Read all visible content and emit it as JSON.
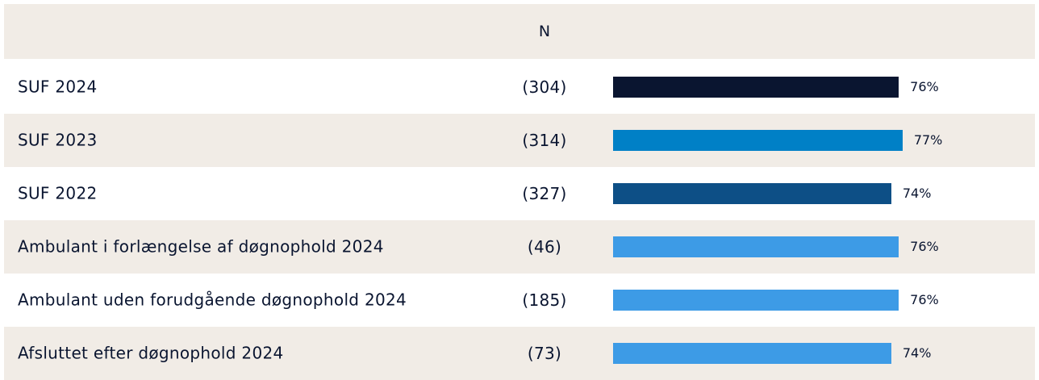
{
  "chart_data": {
    "type": "bar",
    "orientation": "horizontal",
    "n_header": "N",
    "categories": [
      "SUF 2024",
      "SUF 2023",
      "SUF 2022",
      "Ambulant i forlængelse af døgnophold 2024",
      "Ambulant uden forudgående døgnophold 2024",
      "Afsluttet efter døgnophold 2024"
    ],
    "n": [
      304,
      314,
      327,
      46,
      185,
      73
    ],
    "n_labels": [
      "(304)",
      "(314)",
      "(327)",
      "(46)",
      "(185)",
      "(73)"
    ],
    "values": [
      76,
      77,
      74,
      76,
      76,
      74
    ],
    "value_labels": [
      "76%",
      "77%",
      "74%",
      "76%",
      "76%",
      "74%"
    ],
    "colors": [
      "#0a1530",
      "#0080c6",
      "#0d4f86",
      "#3d9be6",
      "#3d9be6",
      "#3d9be6"
    ],
    "xlim": [
      0,
      100
    ]
  }
}
